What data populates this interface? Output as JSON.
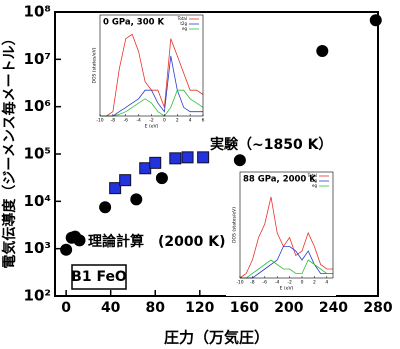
{
  "chart_data": [
    {
      "type": "scatter",
      "xlabel": "圧力（万気圧）",
      "ylabel": "電気伝導度（ジーメンス毎メートル）",
      "annotation": "B1 FeO",
      "xlim": [
        -10,
        280
      ],
      "xticks": [
        0,
        40,
        80,
        120,
        160,
        200,
        240,
        280
      ],
      "ylim": [
        100,
        100000000
      ],
      "log_y": true,
      "yticks": [
        {
          "value": 100,
          "label": "10²"
        },
        {
          "value": 1000,
          "label": "10³"
        },
        {
          "value": 10000,
          "label": "10⁴"
        },
        {
          "value": 100000,
          "label": "10⁵"
        },
        {
          "value": 1000000,
          "label": "10⁶"
        },
        {
          "value": 10000000,
          "label": "10⁷"
        },
        {
          "value": 100000000,
          "label": "10⁸"
        }
      ],
      "series": [
        {
          "name": "理論計算　(2000 K)",
          "color": "#000000",
          "marker": "circle",
          "x": [
            0,
            5,
            8,
            12,
            35,
            63,
            86,
            156,
            230,
            278
          ],
          "values": [
            950,
            1700,
            1800,
            1500,
            7500,
            11000,
            31000,
            74000,
            15000000,
            67000000
          ]
        },
        {
          "name": "実験（~1850 K）",
          "color": "#2233dd",
          "marker": "square",
          "x": [
            44,
            53,
            71,
            80,
            98,
            109,
            123
          ],
          "values": [
            19000,
            28000,
            50000,
            65000,
            81000,
            85000,
            85000
          ]
        }
      ]
    },
    {
      "type": "line",
      "title": "0 GPa, 300 K",
      "xlabel": "E (eV)",
      "ylabel": "DOS (states/eV)",
      "xlim": [
        -10,
        6
      ],
      "xticks": [
        -10,
        -8,
        -6,
        -4,
        -2,
        0,
        2,
        4,
        6
      ],
      "ylim": [
        0,
        1
      ],
      "x": [
        -10,
        -9,
        -8,
        -7,
        -6,
        -5,
        -4,
        -3,
        -2,
        -1,
        0,
        1,
        2,
        3,
        4,
        5,
        6
      ],
      "series": [
        {
          "name": "Total",
          "color": "#e8312a",
          "values": [
            0,
            0,
            0.05,
            0.55,
            0.9,
            0.95,
            0.75,
            0.4,
            0.3,
            0.3,
            0.1,
            0.9,
            0.7,
            0.5,
            0.3,
            0.3,
            0.25
          ]
        },
        {
          "name": "t2g",
          "color": "#2a3ccf",
          "values": [
            0,
            0,
            0,
            0.05,
            0.1,
            0.15,
            0.2,
            0.3,
            0.3,
            0.15,
            0.05,
            0.7,
            0.3,
            0.1,
            0.05,
            0.05,
            0.05
          ]
        },
        {
          "name": "eg",
          "color": "#2fbf3a",
          "values": [
            0,
            0,
            0,
            0.02,
            0.05,
            0.1,
            0.15,
            0.2,
            0.15,
            0.05,
            0,
            0.1,
            0.3,
            0.3,
            0.2,
            0.15,
            0.1
          ]
        }
      ]
    },
    {
      "type": "line",
      "title": "88 GPa, 2000 K",
      "xlabel": "E (eV)",
      "ylabel": "DOS (states/eV)",
      "xlim": [
        -10,
        5
      ],
      "xticks": [
        -10,
        -8,
        -6,
        -4,
        -2,
        0,
        2,
        4
      ],
      "ylim": [
        0,
        1
      ],
      "x": [
        -10,
        -9,
        -8,
        -7,
        -6,
        -5,
        -4,
        -3,
        -2,
        -1,
        0,
        1,
        2,
        3,
        4,
        5
      ],
      "series": [
        {
          "name": "Total",
          "color": "#e8312a",
          "values": [
            0,
            0.05,
            0.2,
            0.45,
            0.6,
            0.9,
            0.5,
            0.35,
            0.45,
            0.25,
            0.3,
            0.5,
            0.35,
            0.15,
            0.1,
            0.1
          ]
        },
        {
          "name": "t2g",
          "color": "#2a3ccf",
          "values": [
            0,
            0,
            0,
            0.05,
            0.1,
            0.15,
            0.2,
            0.35,
            0.35,
            0.3,
            0.2,
            0.3,
            0.15,
            0.05,
            0.05,
            0.05
          ]
        },
        {
          "name": "eg",
          "color": "#2fbf3a",
          "values": [
            0,
            0,
            0.05,
            0.1,
            0.15,
            0.2,
            0.15,
            0.1,
            0.1,
            0.05,
            0.05,
            0.2,
            0.15,
            0.1,
            0.05,
            0.05
          ]
        }
      ]
    }
  ]
}
